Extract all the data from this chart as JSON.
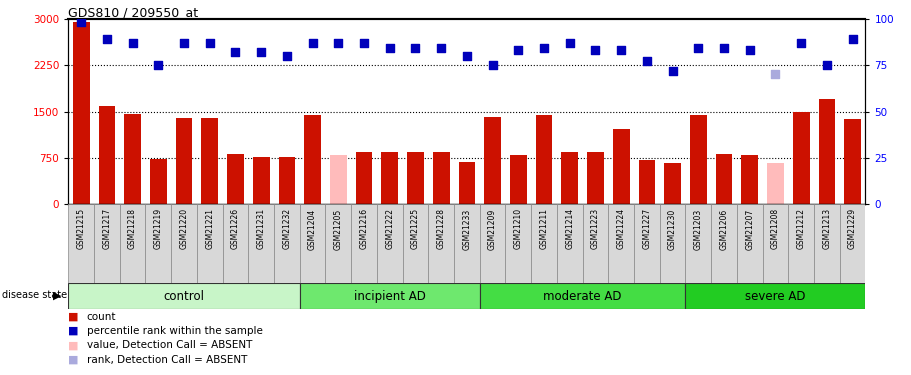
{
  "title": "GDS810 / 209550_at",
  "samples": [
    "GSM21215",
    "GSM21217",
    "GSM21218",
    "GSM21219",
    "GSM21220",
    "GSM21221",
    "GSM21226",
    "GSM21231",
    "GSM21232",
    "GSM21204",
    "GSM21205",
    "GSM21216",
    "GSM21222",
    "GSM21225",
    "GSM21228",
    "GSM21233",
    "GSM21209",
    "GSM21210",
    "GSM21211",
    "GSM21214",
    "GSM21223",
    "GSM21224",
    "GSM21227",
    "GSM21230",
    "GSM21203",
    "GSM21206",
    "GSM21207",
    "GSM21208",
    "GSM21212",
    "GSM21213",
    "GSM21229"
  ],
  "groups": [
    "control",
    "incipient AD",
    "moderate AD",
    "severe AD"
  ],
  "group_sizes": [
    9,
    7,
    8,
    7
  ],
  "bar_values": [
    2950,
    1590,
    1460,
    730,
    1400,
    1400,
    820,
    770,
    770,
    1440,
    800,
    850,
    840,
    840,
    840,
    680,
    1420,
    800,
    1450,
    840,
    840,
    1220,
    710,
    670,
    1450,
    810,
    790,
    670,
    1490,
    1700,
    1380
  ],
  "bar_absent": [
    false,
    false,
    false,
    false,
    false,
    false,
    false,
    false,
    false,
    false,
    true,
    false,
    false,
    false,
    false,
    false,
    false,
    false,
    false,
    false,
    false,
    false,
    false,
    false,
    false,
    false,
    false,
    true,
    false,
    false,
    false
  ],
  "rank_values": [
    98,
    89,
    87,
    75,
    87,
    87,
    82,
    82,
    80,
    87,
    87,
    87,
    84,
    84,
    84,
    80,
    75,
    83,
    84,
    87,
    83,
    83,
    77,
    72,
    84,
    84,
    83,
    70,
    87,
    75,
    89
  ],
  "rank_absent": [
    false,
    false,
    false,
    false,
    false,
    false,
    false,
    false,
    false,
    false,
    false,
    false,
    false,
    false,
    false,
    false,
    false,
    false,
    false,
    false,
    false,
    false,
    false,
    false,
    false,
    false,
    false,
    true,
    false,
    false,
    false
  ],
  "ylim_left": [
    0,
    3000
  ],
  "ylim_right": [
    0,
    100
  ],
  "yticks_left": [
    0,
    750,
    1500,
    2250,
    3000
  ],
  "yticks_right": [
    0,
    25,
    50,
    75,
    100
  ],
  "bar_color_normal": "#cc1100",
  "bar_color_absent": "#ffbbbb",
  "rank_color_normal": "#0000bb",
  "rank_color_absent": "#aaaadd",
  "legend_items": [
    {
      "color": "#cc1100",
      "label": "count"
    },
    {
      "color": "#0000bb",
      "label": "percentile rank within the sample"
    },
    {
      "color": "#ffbbbb",
      "label": "value, Detection Call = ABSENT"
    },
    {
      "color": "#aaaadd",
      "label": "rank, Detection Call = ABSENT"
    }
  ]
}
